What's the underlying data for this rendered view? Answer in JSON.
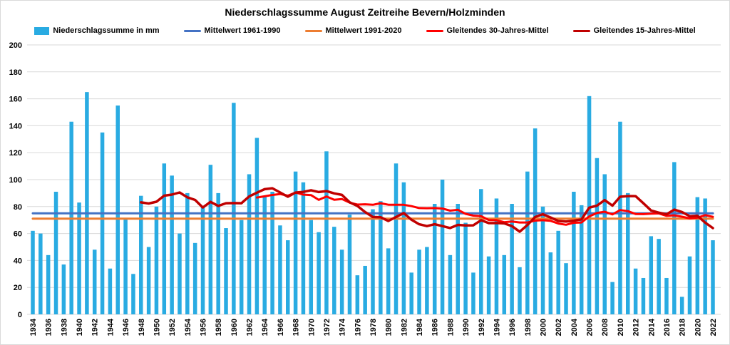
{
  "chart_data": {
    "type": "bar",
    "title": "Niederschlagssumme August Zeitreihe Bevern/Holzminden",
    "xlabel": "",
    "ylabel": "",
    "unit": "mm",
    "years_start": 1934,
    "years_end": 2022,
    "ylim": [
      0,
      200
    ],
    "grid": true,
    "legend_position": "top",
    "colors": {
      "bar": "#29ABE2",
      "mean_1961_1990": "#4472C4",
      "mean_1991_2020": "#ED7D31",
      "rolling_30yr": "#FF0000",
      "rolling_15yr": "#C00000",
      "gridline": "#D9D9D9"
    },
    "y_ticks": [
      0,
      20,
      40,
      60,
      80,
      100,
      120,
      140,
      160,
      180,
      200
    ],
    "x_ticks": [
      1934,
      1936,
      1938,
      1940,
      1942,
      1944,
      1946,
      1948,
      1950,
      1952,
      1954,
      1956,
      1958,
      1960,
      1962,
      1964,
      1966,
      1968,
      1970,
      1972,
      1974,
      1976,
      1978,
      1980,
      1982,
      1984,
      1986,
      1988,
      1990,
      1992,
      1994,
      1996,
      1998,
      2000,
      2002,
      2004,
      2006,
      2008,
      2010,
      2012,
      2014,
      2016,
      2018,
      2020,
      2022
    ],
    "series": [
      {
        "name": "Niederschlagssumme in mm",
        "type": "bar",
        "color": "#29ABE2",
        "start_year": 1934,
        "values": [
          62,
          60,
          44,
          91,
          37,
          143,
          83,
          165,
          48,
          135,
          34,
          155,
          71,
          30,
          88,
          50,
          80,
          112,
          103,
          60,
          90,
          53,
          80,
          111,
          90,
          64,
          157,
          70,
          104,
          131,
          88,
          91,
          66,
          55,
          106,
          98,
          70,
          61,
          121,
          65,
          48,
          74,
          29,
          36,
          78,
          84,
          49,
          112,
          98,
          31,
          48,
          50,
          82,
          100,
          44,
          82,
          68,
          31,
          93,
          43,
          86,
          44,
          82,
          35,
          106,
          138,
          80,
          46,
          62,
          38,
          91,
          81,
          162,
          116,
          104,
          24,
          143,
          90,
          34,
          27,
          58,
          56,
          27,
          113,
          13,
          43,
          87,
          86,
          55
        ]
      },
      {
        "name": "Mittelwert 1961-1990",
        "type": "hline",
        "color": "#4472C4",
        "value": 75
      },
      {
        "name": "Mittelwert 1991-2020",
        "type": "hline",
        "color": "#ED7D31",
        "value": 71
      },
      {
        "name": "Gleitendes 30-Jahres-Mittel",
        "type": "line",
        "color": "#FF0000",
        "start_year": 1963,
        "values": [
          86.7,
          87.6,
          88.6,
          89.3,
          88.1,
          90.4,
          88.9,
          88.5,
          85.0,
          87.5,
          85.1,
          85.6,
          82.9,
          81.5,
          81.7,
          81.3,
          82.5,
          81.4,
          81.4,
          81.3,
          80.3,
          78.9,
          78.8,
          78.9,
          78.5,
          77.0,
          77.6,
          74.6,
          73.3,
          72.9,
          70.0,
          69.9,
          68.4,
          68.9,
          68.2,
          68.2,
          69.6,
          69.9,
          69.4,
          67.4,
          66.5,
          68.0,
          68.2,
          72.7,
          75.3,
          76.2,
          74.2,
          77.4,
          76.6,
          74.5,
          74.4,
          74.7,
          74.9,
          73.1,
          73.5,
          72.5,
          71.2,
          71.8,
          73.6,
          72.4
        ]
      },
      {
        "name": "Gleitendes 15-Jahres-Mittel",
        "type": "line",
        "color": "#C00000",
        "start_year": 1948,
        "values": [
          83.1,
          82.3,
          83.6,
          88.1,
          88.9,
          90.5,
          86.9,
          84.9,
          79.3,
          83.5,
          80.5,
          82.5,
          82.6,
          82.5,
          87.5,
          90.3,
          92.9,
          93.6,
          90.5,
          87.3,
          90.4,
          90.9,
          92.1,
          90.8,
          91.5,
          89.8,
          88.7,
          83.2,
          80.5,
          75.9,
          72.3,
          72.1,
          69.3,
          72.3,
          75.2,
          70.2,
          66.9,
          65.5,
          66.9,
          65.5,
          64.1,
          66.4,
          66.0,
          66.1,
          69.9,
          67.7,
          67.8,
          67.5,
          65.5,
          61.3,
          66.3,
          72.3,
          74.3,
          71.9,
          69.3,
          68.9,
          69.5,
          70.5,
          79.2,
          80.7,
          84.8,
          80.7,
          87.3,
          87.8,
          87.7,
          82.5,
          77.1,
          75.5,
          74.3,
          77.7,
          76.0,
          72.8,
          73.1,
          68.1,
          64.0
        ]
      }
    ]
  }
}
